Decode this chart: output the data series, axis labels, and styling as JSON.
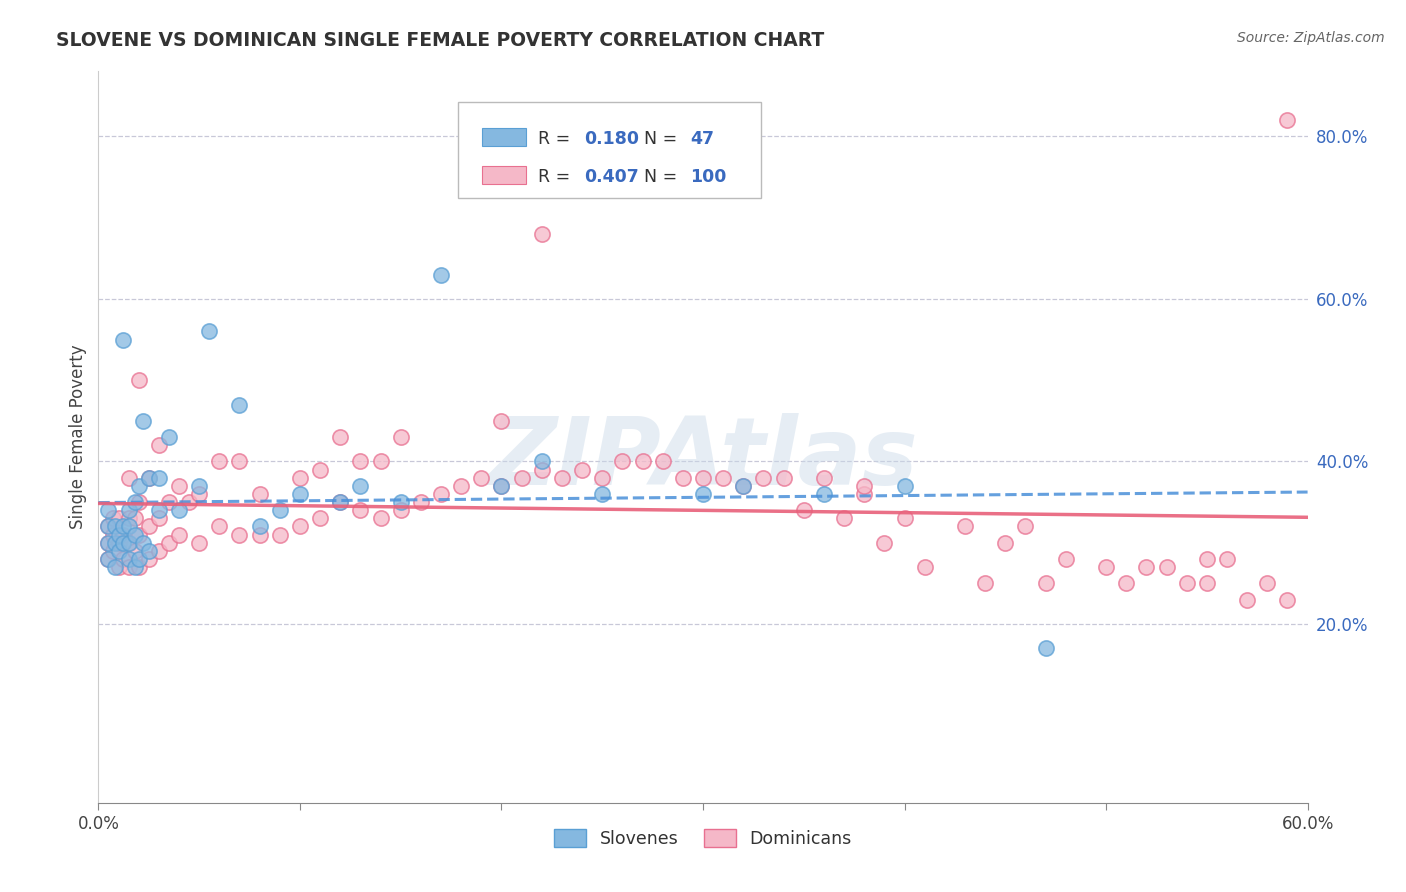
{
  "title": "SLOVENE VS DOMINICAN SINGLE FEMALE POVERTY CORRELATION CHART",
  "source_text": "Source: ZipAtlas.com",
  "ylabel": "Single Female Poverty",
  "xlim": [
    0.0,
    0.6
  ],
  "ylim": [
    -0.02,
    0.88
  ],
  "x_ticks": [
    0.0,
    0.1,
    0.2,
    0.3,
    0.4,
    0.5,
    0.6
  ],
  "x_tick_labels": [
    "0.0%",
    "",
    "",
    "",
    "",
    "",
    "60.0%"
  ],
  "y_ticks_right": [
    0.2,
    0.4,
    0.6,
    0.8
  ],
  "y_tick_labels_right": [
    "20.0%",
    "40.0%",
    "60.0%",
    "80.0%"
  ],
  "slovene_color": "#85b8e0",
  "slovene_edge_color": "#5a9fd4",
  "dominican_color": "#f5b8c8",
  "dominican_edge_color": "#e87090",
  "slovene_line_color": "#4a90d9",
  "dominican_line_color": "#e8607a",
  "slovene_R": 0.18,
  "slovene_N": 47,
  "dominican_R": 0.407,
  "dominican_N": 100,
  "background_color": "#ffffff",
  "grid_color": "#c8c8d8",
  "watermark": "ZIPAtlas",
  "legend_color": "#3a6abf",
  "slovene_points_x": [
    0.005,
    0.005,
    0.005,
    0.005,
    0.008,
    0.008,
    0.008,
    0.01,
    0.01,
    0.012,
    0.012,
    0.012,
    0.015,
    0.015,
    0.015,
    0.015,
    0.018,
    0.018,
    0.018,
    0.02,
    0.02,
    0.022,
    0.022,
    0.025,
    0.025,
    0.03,
    0.03,
    0.035,
    0.04,
    0.05,
    0.055,
    0.07,
    0.08,
    0.09,
    0.1,
    0.12,
    0.13,
    0.15,
    0.17,
    0.2,
    0.22,
    0.25,
    0.3,
    0.32,
    0.36,
    0.4,
    0.47
  ],
  "slovene_points_y": [
    0.28,
    0.3,
    0.32,
    0.34,
    0.27,
    0.3,
    0.32,
    0.29,
    0.31,
    0.3,
    0.32,
    0.55,
    0.28,
    0.3,
    0.32,
    0.34,
    0.27,
    0.31,
    0.35,
    0.28,
    0.37,
    0.3,
    0.45,
    0.29,
    0.38,
    0.34,
    0.38,
    0.43,
    0.34,
    0.37,
    0.56,
    0.47,
    0.32,
    0.34,
    0.36,
    0.35,
    0.37,
    0.35,
    0.63,
    0.37,
    0.4,
    0.36,
    0.36,
    0.37,
    0.36,
    0.37,
    0.17
  ],
  "dominican_points_x": [
    0.005,
    0.005,
    0.005,
    0.007,
    0.007,
    0.007,
    0.01,
    0.01,
    0.01,
    0.012,
    0.012,
    0.015,
    0.015,
    0.015,
    0.015,
    0.018,
    0.018,
    0.02,
    0.02,
    0.02,
    0.02,
    0.025,
    0.025,
    0.025,
    0.03,
    0.03,
    0.03,
    0.035,
    0.035,
    0.04,
    0.04,
    0.045,
    0.05,
    0.05,
    0.06,
    0.06,
    0.07,
    0.07,
    0.08,
    0.08,
    0.09,
    0.1,
    0.1,
    0.11,
    0.11,
    0.12,
    0.12,
    0.13,
    0.13,
    0.14,
    0.14,
    0.15,
    0.15,
    0.16,
    0.17,
    0.18,
    0.19,
    0.2,
    0.2,
    0.21,
    0.22,
    0.23,
    0.24,
    0.25,
    0.26,
    0.27,
    0.28,
    0.29,
    0.3,
    0.31,
    0.32,
    0.33,
    0.34,
    0.35,
    0.36,
    0.37,
    0.38,
    0.39,
    0.4,
    0.41,
    0.43,
    0.44,
    0.45,
    0.46,
    0.47,
    0.48,
    0.5,
    0.51,
    0.52,
    0.53,
    0.54,
    0.55,
    0.55,
    0.56,
    0.57,
    0.58,
    0.59,
    0.59,
    0.22,
    0.38
  ],
  "dominican_points_y": [
    0.28,
    0.3,
    0.32,
    0.29,
    0.31,
    0.33,
    0.27,
    0.3,
    0.33,
    0.28,
    0.31,
    0.27,
    0.3,
    0.33,
    0.38,
    0.29,
    0.33,
    0.27,
    0.31,
    0.35,
    0.5,
    0.28,
    0.32,
    0.38,
    0.29,
    0.33,
    0.42,
    0.3,
    0.35,
    0.31,
    0.37,
    0.35,
    0.3,
    0.36,
    0.32,
    0.4,
    0.31,
    0.4,
    0.31,
    0.36,
    0.31,
    0.32,
    0.38,
    0.33,
    0.39,
    0.35,
    0.43,
    0.34,
    0.4,
    0.33,
    0.4,
    0.34,
    0.43,
    0.35,
    0.36,
    0.37,
    0.38,
    0.37,
    0.45,
    0.38,
    0.39,
    0.38,
    0.39,
    0.38,
    0.4,
    0.4,
    0.4,
    0.38,
    0.38,
    0.38,
    0.37,
    0.38,
    0.38,
    0.34,
    0.38,
    0.33,
    0.36,
    0.3,
    0.33,
    0.27,
    0.32,
    0.25,
    0.3,
    0.32,
    0.25,
    0.28,
    0.27,
    0.25,
    0.27,
    0.27,
    0.25,
    0.25,
    0.28,
    0.28,
    0.23,
    0.25,
    0.23,
    0.82,
    0.68,
    0.37
  ]
}
